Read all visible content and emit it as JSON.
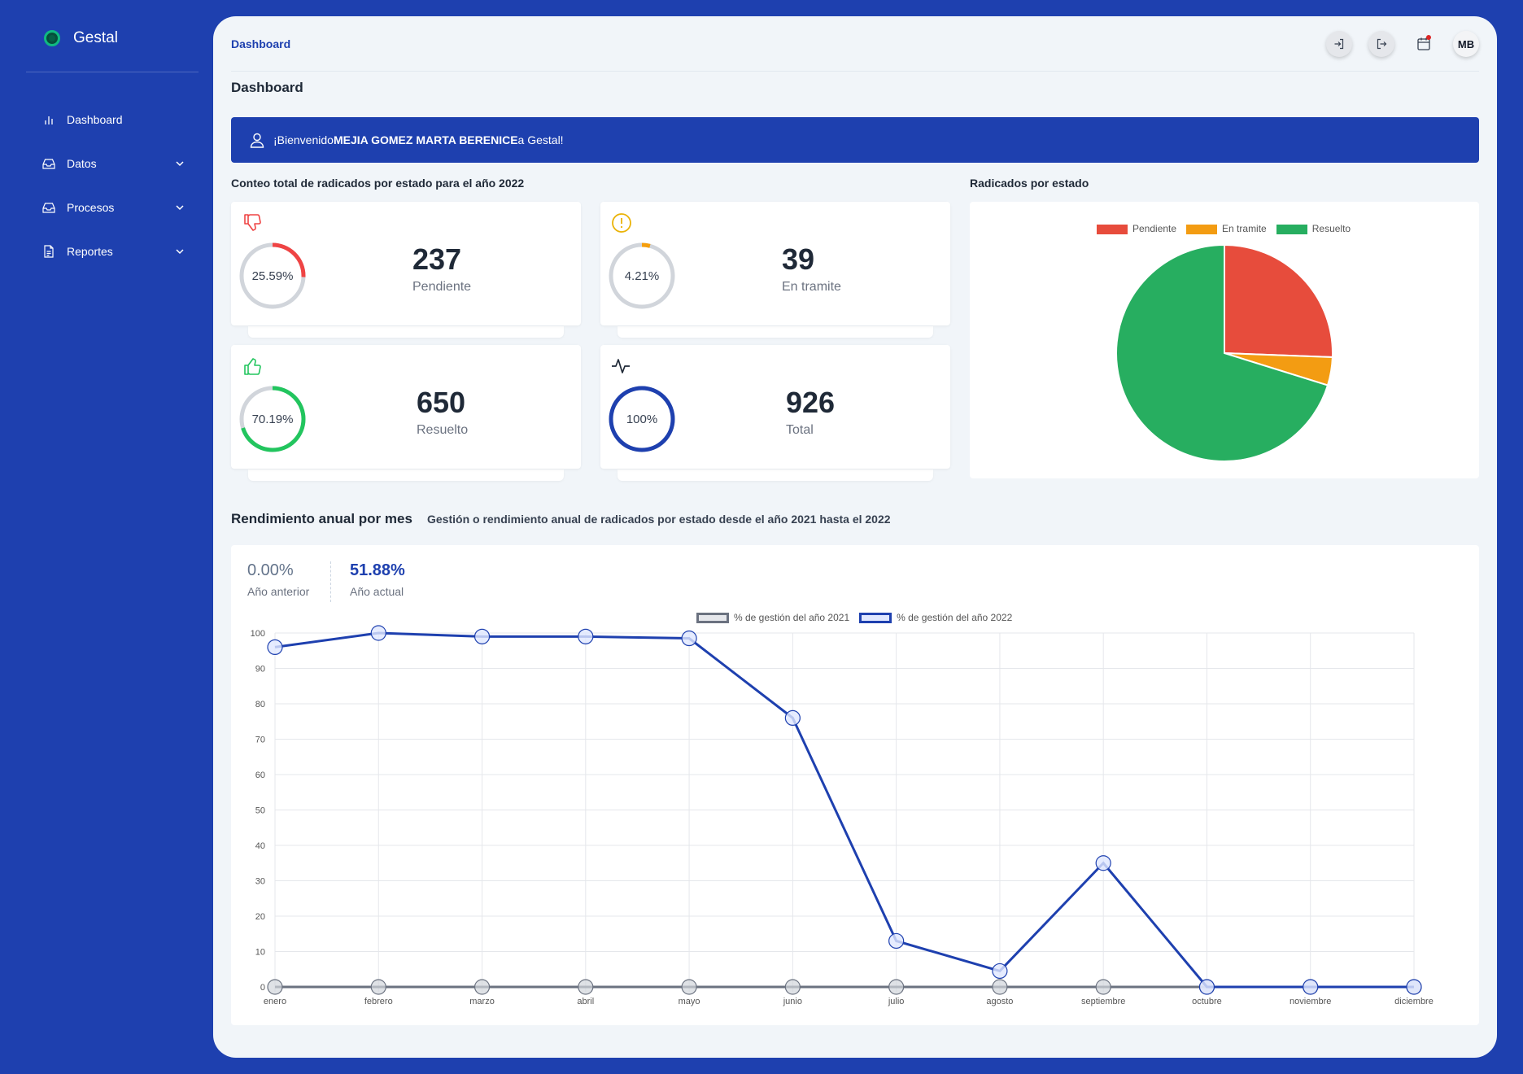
{
  "app": {
    "name": "Gestal"
  },
  "sidebar": {
    "items": [
      {
        "label": "Dashboard",
        "icon": "bar-chart-icon",
        "expandable": false
      },
      {
        "label": "Datos",
        "icon": "inbox-icon",
        "expandable": true
      },
      {
        "label": "Procesos",
        "icon": "inbox-icon",
        "expandable": true
      },
      {
        "label": "Reportes",
        "icon": "document-icon",
        "expandable": true
      }
    ]
  },
  "header": {
    "breadcrumb": "Dashboard",
    "page_title": "Dashboard",
    "user_initials": "MB",
    "icons": [
      "login-icon",
      "logout-icon",
      "calendar-icon"
    ]
  },
  "welcome": {
    "prefix": "¡Bienvenido ",
    "name": "MEJIA GOMEZ MARTA BERENICE",
    "suffix": " a Gestal!"
  },
  "stats": {
    "section_title": "Conteo total de radicados por estado para el año 2022",
    "cards": [
      {
        "label": "Pendiente",
        "value": "237",
        "percent_text": "25.59%",
        "percent": 25.59,
        "color": "#ef4444",
        "icon": "thumbs-down-icon"
      },
      {
        "label": "En tramite",
        "value": "39",
        "percent_text": "4.21%",
        "percent": 4.21,
        "color": "#f59e0b",
        "icon": "alert-circle-icon"
      },
      {
        "label": "Resuelto",
        "value": "650",
        "percent_text": "70.19%",
        "percent": 70.19,
        "color": "#22c55e",
        "icon": "thumbs-up-icon"
      },
      {
        "label": "Total",
        "value": "926",
        "percent_text": "100%",
        "percent": 100,
        "color": "#1e40af",
        "icon": "activity-icon"
      }
    ]
  },
  "pie": {
    "section_title": "Radicados por estado"
  },
  "performance": {
    "title": "Rendimiento anual por mes",
    "subtitle": "Gestión o rendimiento anual de radicados por estado desde el año 2021 hasta el 2022",
    "previous": {
      "value": "0.00%",
      "label": "Año anterior"
    },
    "current": {
      "value": "51.88%",
      "label": "Año actual"
    }
  },
  "colors": {
    "brand": "#1e40af",
    "pendiente": "#e74c3c",
    "en_tramite": "#f39c12",
    "resuelto": "#27ae60"
  },
  "chart_data": [
    {
      "type": "pie",
      "categories": [
        "Pendiente",
        "En tramite",
        "Resuelto"
      ],
      "values": [
        237,
        39,
        650
      ],
      "colors": [
        "#e74c3c",
        "#f39c12",
        "#27ae60"
      ],
      "legend": "top"
    },
    {
      "type": "line",
      "categories": [
        "enero",
        "febrero",
        "marzo",
        "abril",
        "mayo",
        "junio",
        "julio",
        "agosto",
        "septiembre",
        "octubre",
        "noviembre",
        "diciembre"
      ],
      "series": [
        {
          "name": "% de gestión del año 2021",
          "values": [
            0,
            0,
            0,
            0,
            0,
            0,
            0,
            0,
            0,
            0,
            0,
            0
          ],
          "color": "#6b7280"
        },
        {
          "name": "% de gestión del año 2022",
          "values": [
            96,
            100,
            99,
            99,
            98.5,
            76,
            13,
            4.5,
            35,
            0,
            0,
            0
          ],
          "color": "#1e40af"
        }
      ],
      "yticks": [
        0,
        10,
        20,
        30,
        40,
        50,
        60,
        70,
        80,
        90,
        100
      ],
      "ylim": [
        0,
        100
      ],
      "grid": true,
      "legend": "top"
    }
  ]
}
